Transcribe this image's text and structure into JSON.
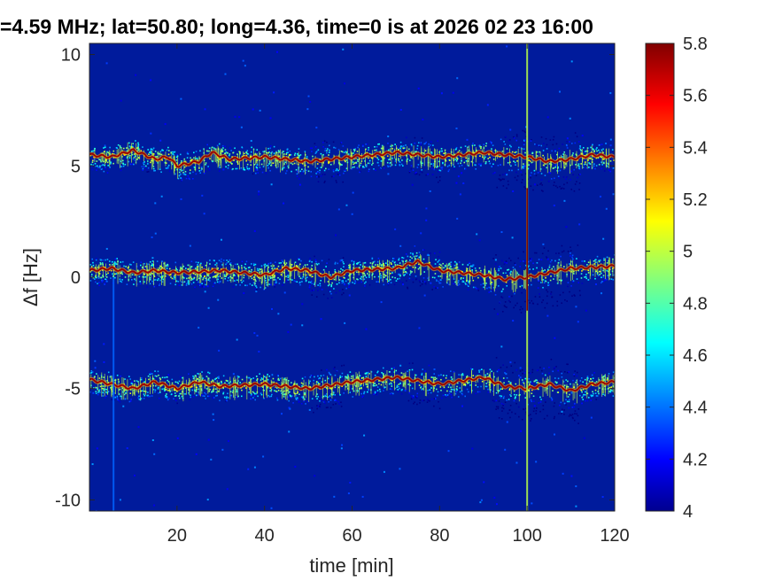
{
  "chart_data": {
    "type": "heatmap",
    "title": "=4.59 MHz;  lat=50.80; long=4.36, time=0 is at 2026 02 23 16:00",
    "xlabel": "time [min]",
    "ylabel": "Δf [Hz]",
    "xlim": [
      0,
      120
    ],
    "ylim": [
      -10.5,
      10.5
    ],
    "x_ticks": [
      "20",
      "40",
      "60",
      "80",
      "100",
      "120"
    ],
    "y_ticks": [
      "10",
      "5",
      "0",
      "-5",
      "-10"
    ],
    "colorbar": {
      "range": [
        4,
        5.8
      ],
      "ticks": [
        "5.8",
        "5.6",
        "5.4",
        "5.2",
        "5",
        "4.8",
        "4.6",
        "4.4",
        "4.2",
        "4"
      ],
      "colormap": "jet"
    },
    "background_color": "#001b9c",
    "traces": [
      {
        "name": "",
        "x": [
          0,
          5,
          10,
          15,
          18,
          20,
          25,
          28,
          32,
          40,
          50,
          60,
          70,
          80,
          90,
          100,
          105,
          110,
          115,
          120
        ],
        "df": [
          5.5,
          5.4,
          5.7,
          5.3,
          5.4,
          5.0,
          5.2,
          5.6,
          5.3,
          5.4,
          5.2,
          5.4,
          5.6,
          5.4,
          5.6,
          5.4,
          5.2,
          5.3,
          5.5,
          5.4
        ]
      },
      {
        "name": "",
        "x": [
          0,
          5,
          10,
          15,
          20,
          30,
          40,
          45,
          50,
          55,
          60,
          70,
          75,
          80,
          90,
          95,
          100,
          110,
          120
        ],
        "df": [
          0.3,
          0.4,
          0.2,
          0.3,
          0.2,
          0.3,
          0.1,
          0.4,
          0.3,
          0.0,
          0.3,
          0.4,
          0.7,
          0.3,
          0.1,
          -0.1,
          0.0,
          0.4,
          0.5
        ]
      },
      {
        "name": "",
        "x": [
          0,
          5,
          10,
          15,
          20,
          25,
          30,
          40,
          50,
          60,
          70,
          80,
          90,
          95,
          100,
          105,
          110,
          115,
          120
        ],
        "df": [
          -4.6,
          -4.8,
          -5.0,
          -4.7,
          -5.0,
          -4.7,
          -4.9,
          -4.8,
          -5.0,
          -4.7,
          -4.5,
          -4.8,
          -4.5,
          -4.9,
          -5.0,
          -4.8,
          -5.1,
          -4.8,
          -4.7
        ]
      }
    ],
    "vertical_lines": [
      {
        "x": 100,
        "range": [
          -10.5,
          10.5
        ],
        "intensity": 5.0
      },
      {
        "x": 100,
        "range": [
          -1.5,
          4.0
        ],
        "intensity": 5.8
      },
      {
        "x": 5.5,
        "range": [
          -10.5,
          0
        ],
        "intensity": 4.4
      }
    ]
  }
}
